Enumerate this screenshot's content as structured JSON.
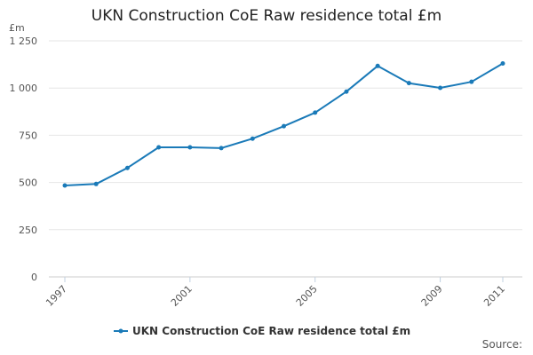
{
  "chart_data": {
    "type": "line",
    "title": "UKN Construction CoE Raw residence total £m",
    "ylabel": "£m",
    "xlabel": "",
    "ylim": [
      0,
      1250
    ],
    "yticks": [
      {
        "value": 0,
        "label": "0"
      },
      {
        "value": 250,
        "label": "250"
      },
      {
        "value": 500,
        "label": "500"
      },
      {
        "value": 750,
        "label": "750"
      },
      {
        "value": 1000,
        "label": "1 000"
      },
      {
        "value": 1250,
        "label": "1 250"
      }
    ],
    "xlim": [
      1997,
      2011
    ],
    "xticks": [
      {
        "value": 1997,
        "label": "1997"
      },
      {
        "value": 2001,
        "label": "2001"
      },
      {
        "value": 2005,
        "label": "2005"
      },
      {
        "value": 2009,
        "label": "2009"
      },
      {
        "value": 2011,
        "label": "2011"
      }
    ],
    "grid": "horizontal",
    "legend_position": "bottom",
    "color": "#1a7ab8",
    "series": [
      {
        "name": "UKN Construction CoE Raw residence total £m",
        "x": [
          1997,
          1998,
          1999,
          2000,
          2001,
          2002,
          2003,
          2004,
          2005,
          2006,
          2007,
          2008,
          2009,
          2010,
          2011
        ],
        "values": [
          484,
          492,
          577,
          686,
          686,
          682,
          732,
          798,
          870,
          981,
          1117,
          1026,
          1001,
          1033,
          1130
        ]
      }
    ]
  },
  "source_label": "Source:"
}
